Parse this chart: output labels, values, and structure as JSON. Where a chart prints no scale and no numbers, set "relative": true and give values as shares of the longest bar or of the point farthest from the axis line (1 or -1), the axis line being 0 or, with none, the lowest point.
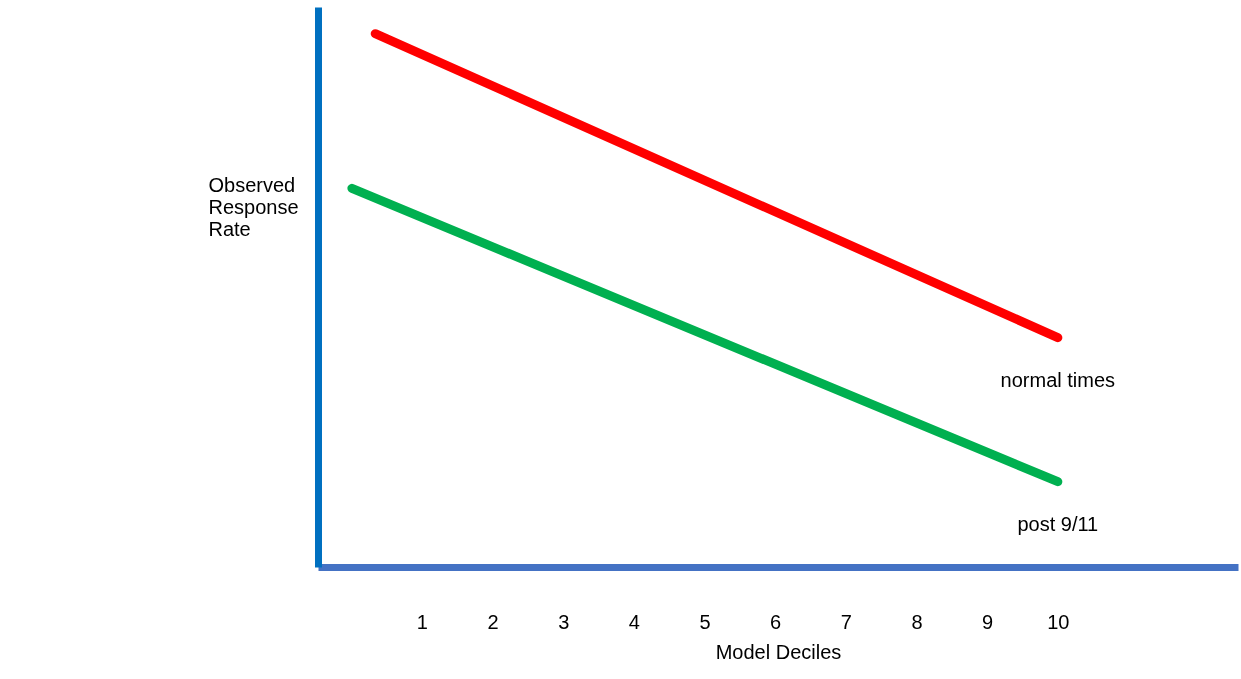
{
  "chart_data": {
    "type": "line",
    "relative": true,
    "xlabel": "Model Deciles",
    "ylabel": "Observed Response Rate",
    "xlim": [
      -0.47,
      12.55
    ],
    "xticks": [
      1,
      2,
      3,
      4,
      5,
      6,
      7,
      8,
      9,
      10
    ],
    "grid": false,
    "line_style": "solid",
    "series": [
      {
        "name": "normal times",
        "color": "#ff0000",
        "x": [
          0.34,
          10
        ],
        "values": [
          1,
          0.43
        ]
      },
      {
        "name": "post 9/11",
        "color": "#00b050",
        "x": [
          0.01,
          10
        ],
        "values": [
          0.71,
          0.16
        ]
      }
    ]
  }
}
